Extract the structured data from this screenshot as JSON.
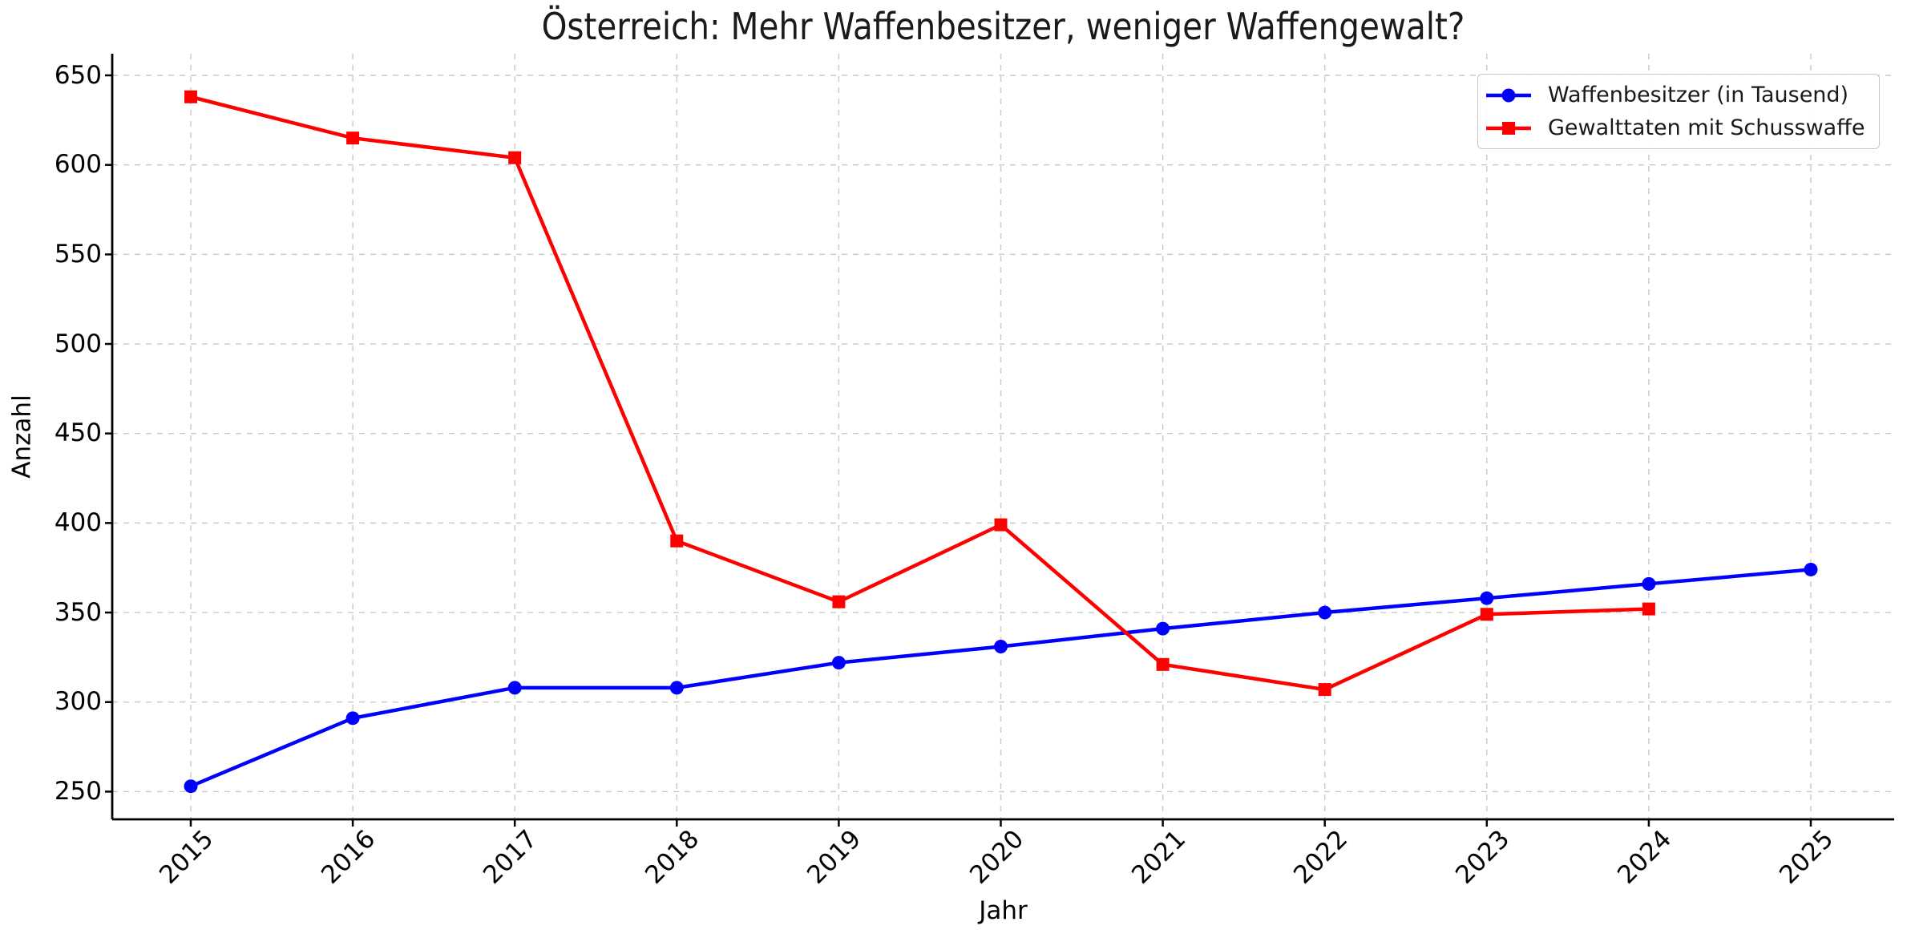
{
  "chart_data": {
    "type": "line",
    "title": "Österreich: Mehr Waffenbesitzer, weniger Waffengewalt?",
    "xlabel": "Jahr",
    "ylabel": "Anzahl",
    "xticks": [
      2015,
      2016,
      2017,
      2018,
      2019,
      2020,
      2021,
      2022,
      2023,
      2024,
      2025
    ],
    "yticks": [
      250,
      300,
      350,
      400,
      450,
      500,
      550,
      600,
      650
    ],
    "xlim": [
      2014.5,
      2025.5
    ],
    "ylim": [
      234,
      662
    ],
    "grid": true,
    "grid_linestyle": "dashed",
    "legend_position": "upper right",
    "x_tick_rotation": 45,
    "series": [
      {
        "name": "Waffenbesitzer (in Tausend)",
        "color": "#0000ff",
        "marker": "circle",
        "x": [
          2015,
          2016,
          2017,
          2018,
          2019,
          2020,
          2021,
          2022,
          2023,
          2024,
          2025
        ],
        "values": [
          253,
          291,
          308,
          308,
          322,
          331,
          341,
          350,
          358,
          366,
          374
        ]
      },
      {
        "name": "Gewalttaten mit Schusswaffe",
        "color": "#ff0000",
        "marker": "square",
        "x": [
          2015,
          2016,
          2017,
          2018,
          2019,
          2020,
          2021,
          2022,
          2023,
          2024
        ],
        "values": [
          638,
          615,
          604,
          390,
          356,
          399,
          321,
          307,
          349,
          352
        ]
      }
    ]
  },
  "colors": {
    "grid": "#c9c9c9",
    "axis": "#000000",
    "text": "#000000",
    "legend_border": "#c6c6c6",
    "background": "#ffffff"
  }
}
